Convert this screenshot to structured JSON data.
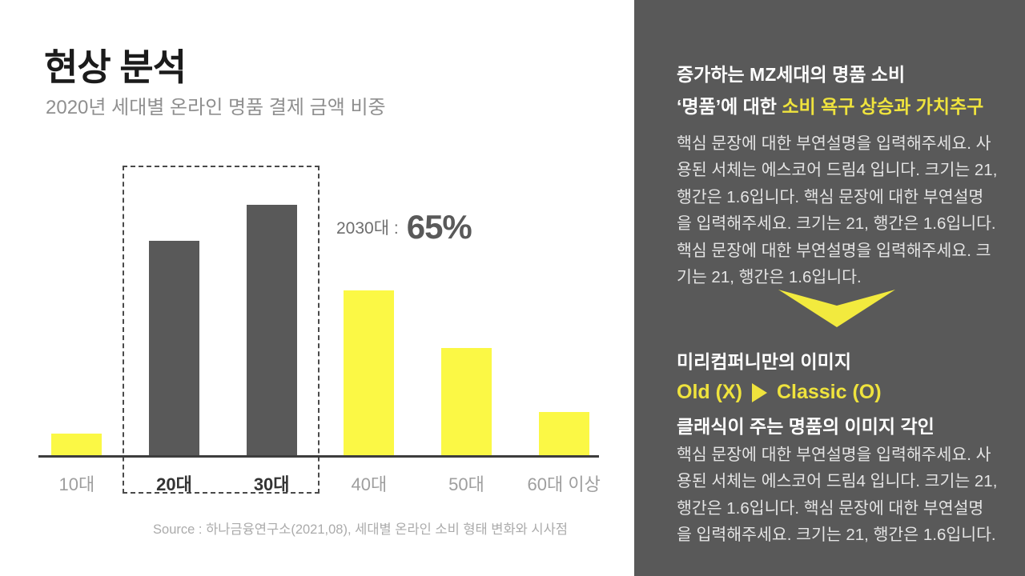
{
  "slide": {
    "title": "현상 분석",
    "subtitle": "2020년 세대별 온라인 명품 결제 금액 비중",
    "source": "Source : 하나금융연구소(2021,08), 세대별 온라인 소비 형태 변화와 시사점"
  },
  "chart_data": {
    "type": "bar",
    "title": "2020년 세대별 온라인 명품 결제 금액 비중",
    "categories": [
      "10대",
      "20대",
      "30대",
      "40대",
      "50대",
      "60대 이상"
    ],
    "values": [
      3,
      30,
      35,
      23,
      15,
      6
    ],
    "unit": "%",
    "bar_colors": [
      "#fbf845",
      "#595959",
      "#595959",
      "#fbf845",
      "#fbf845",
      "#fbf845"
    ],
    "highlighted": [
      "20대",
      "30대"
    ],
    "highlight_label": "2030대 :",
    "highlight_value": "65%",
    "ylim": [
      0,
      40
    ],
    "grid": false,
    "legend": "none",
    "source": "Source : 하나금융연구소(2021,08), 세대별 온라인 소비 형태 변화와 시사점"
  },
  "right_panel": {
    "heading_line1": "증가하는 MZ세대의 명품 소비",
    "heading_line2_prefix": "‘명품’에 대한 ",
    "heading_line2_accent": "소비 욕구 상승과 가치추구",
    "body1_para1": "핵심 문장에 대한 부연설명을 입력해주세요. 사용된 서체는 에스코어 드림4 입니다. 크기는 21, 행간은 1.6입니다. 핵심 문장에 대한 부연설명을 입력해주세요. 크기는 21, 행간은 1.6입니다.",
    "body1_para2": "핵심 문장에 대한 부연설명을 입력해주세요. 크기는 21, 행간은 1.6입니다.",
    "conclusion_line1": "미리컴퍼니만의 이미지",
    "conclusion_old": "Old (X)",
    "conclusion_classic": "Classic (O)",
    "conclusion_line3": "클래식이 주는 명품의 이미지 각인",
    "body2": "핵심 문장에 대한 부연설명을 입력해주세요. 사용된 서체는 에스코어 드림4 입니다. 크기는 21, 행간은 1.6입니다. 핵심 문장에 대한 부연설명을 입력해주세요. 크기는 21, 행간은 1.6입니다."
  },
  "colors": {
    "panel_bg": "#595959",
    "bar_dark": "#595959",
    "bar_yellow": "#fbf845",
    "accent_yellow": "#efe33d",
    "axis": "#3d3d3d",
    "title_text": "#1b1b1b",
    "subtitle_text": "#8f8f8f",
    "muted_label": "#9e9e9e"
  },
  "icons": {
    "down_arrow": "v-shaped-down-arrow",
    "triangle_right": "right-pointing-triangle"
  }
}
